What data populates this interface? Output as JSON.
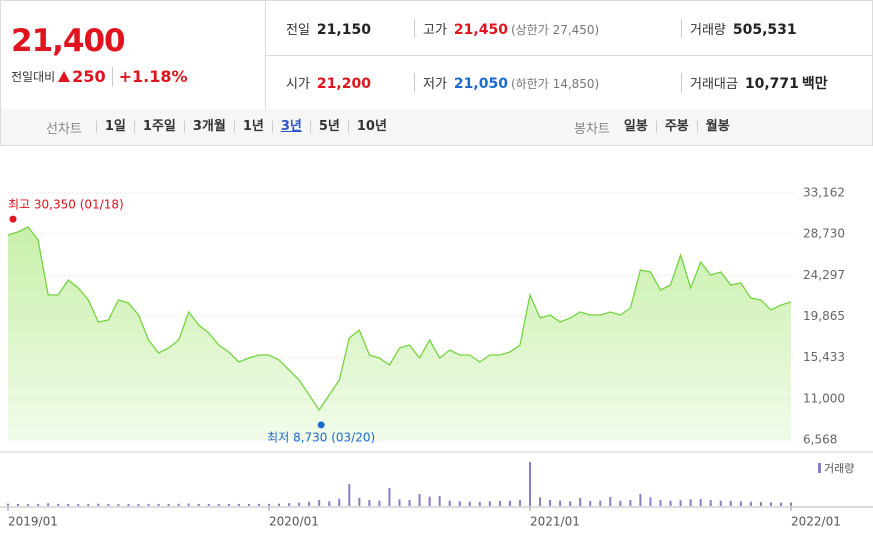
{
  "quote": {
    "price": "21,400",
    "change_label": "전일대비",
    "change": "250",
    "change_rate": "+1.18%",
    "items": [
      {
        "label": "전일",
        "value": "21,150"
      },
      {
        "label": "고가",
        "value": "21,450",
        "note": "(상한가 27,450)",
        "color": "#e0141e"
      },
      {
        "label": "거래량",
        "value": "505,531"
      },
      {
        "label": "시가",
        "value": "21,200",
        "color": "#e0141e"
      },
      {
        "label": "저가",
        "value": "21,050",
        "note": "(하한가 14,850)",
        "color": "#1a6cd0"
      },
      {
        "label": "거래대금",
        "value": "10,771",
        "unit": "백만"
      }
    ]
  },
  "tabs": {
    "line_label": "선차트",
    "periods": [
      "1일",
      "1주일",
      "3개월",
      "1년",
      "3년",
      "5년",
      "10년"
    ],
    "active": "3년",
    "candle_label": "봉차트",
    "candles": [
      "일봉",
      "주봉",
      "월봉"
    ]
  },
  "chart_data": {
    "type": "line",
    "color": "#74d43f",
    "fill": "#c8f0aa",
    "grid": true,
    "categories": [
      "2019/01",
      null,
      null,
      null,
      null,
      null,
      null,
      null,
      null,
      null,
      null,
      null,
      null,
      null,
      null,
      null,
      null,
      null,
      null,
      null,
      null,
      null,
      null,
      null,
      null,
      null,
      "2020/01",
      null,
      null,
      null,
      null,
      null,
      null,
      null,
      null,
      null,
      null,
      null,
      null,
      null,
      null,
      null,
      null,
      null,
      null,
      null,
      null,
      null,
      null,
      null,
      null,
      null,
      "2021/01",
      null,
      null,
      null,
      null,
      null,
      null,
      null,
      null,
      null,
      null,
      null,
      null,
      null,
      null,
      null,
      null,
      null,
      null,
      null,
      null,
      null,
      null,
      null,
      null,
      null,
      "2022/01"
    ],
    "values": [
      28640,
      28960,
      29500,
      28100,
      22180,
      22180,
      23800,
      22930,
      21640,
      19270,
      19490,
      21640,
      21320,
      20030,
      17330,
      15940,
      16470,
      17330,
      20350,
      18950,
      18090,
      16800,
      16040,
      14970,
      15400,
      15720,
      15720,
      15180,
      14100,
      13030,
      11410,
      9800,
      11410,
      13030,
      17550,
      18410,
      15720,
      15400,
      14640,
      16470,
      16800,
      15400,
      17330,
      15400,
      16260,
      15720,
      15720,
      14970,
      15720,
      15720,
      16040,
      16800,
      22180,
      19700,
      20030,
      19270,
      19700,
      20350,
      20030,
      20030,
      20350,
      20030,
      20780,
      24870,
      24660,
      22720,
      23260,
      26490,
      22930,
      25730,
      24330,
      24660,
      23260,
      23470,
      21860,
      21640,
      20570,
      21100,
      21430
    ],
    "ylim": [
      6568,
      33162
    ],
    "yticks": [
      {
        "value": 6568,
        "label": "6,568"
      },
      {
        "value": 11000,
        "label": "11,000"
      },
      {
        "value": 15433,
        "label": "15,433"
      },
      {
        "value": 19865,
        "label": "19,865"
      },
      {
        "value": 24297,
        "label": "24,297"
      },
      {
        "value": 28730,
        "label": "28,730"
      },
      {
        "value": 33162,
        "label": "33,162"
      }
    ],
    "annotations": [
      {
        "text": "최고 30,350 (01/18)",
        "value": 30350,
        "color": "#e0141e"
      },
      {
        "text": "최저 8,730 (03/20)",
        "value": 8730,
        "color": "#1a6cd0"
      }
    ],
    "volume": {
      "type": "bar",
      "name": "거래량",
      "color": "#8c7bc9",
      "values": [
        350000,
        300000,
        280000,
        310000,
        420000,
        330000,
        300000,
        290000,
        310000,
        350000,
        300000,
        280000,
        300000,
        290000,
        320000,
        310000,
        300000,
        340000,
        380000,
        320000,
        300000,
        290000,
        300000,
        310000,
        300000,
        320000,
        330000,
        360000,
        420000,
        500000,
        650000,
        900000,
        700000,
        1100000,
        3300000,
        1200000,
        900000,
        800000,
        2700000,
        1000000,
        900000,
        1800000,
        1400000,
        1500000,
        800000,
        700000,
        650000,
        600000,
        700000,
        750000,
        800000,
        900000,
        6600000,
        1300000,
        900000,
        800000,
        700000,
        1200000,
        750000,
        800000,
        1350000,
        800000,
        900000,
        1800000,
        1300000,
        900000,
        800000,
        850000,
        1000000,
        1050000,
        900000,
        800000,
        750000,
        700000,
        650000,
        600000,
        550000,
        500000,
        520000
      ]
    }
  }
}
